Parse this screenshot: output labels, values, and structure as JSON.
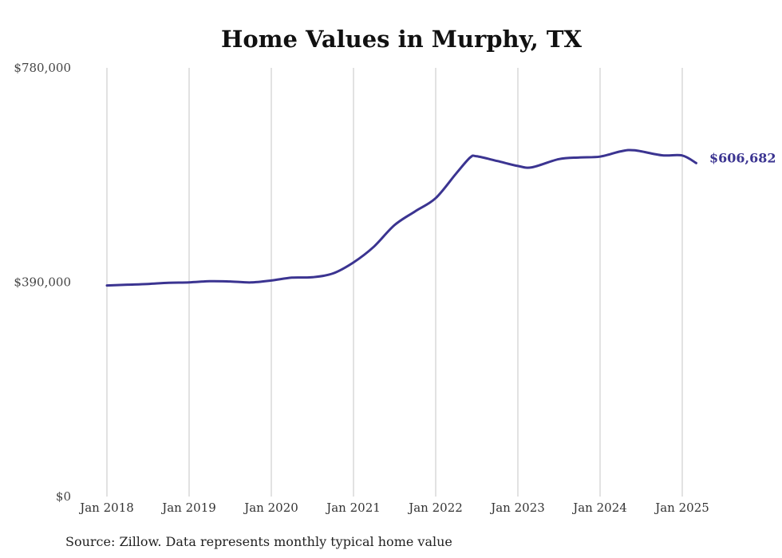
{
  "chart_data": {
    "type": "line",
    "title": "Home Values in Murphy, TX",
    "xlabel": "",
    "ylabel": "",
    "ylim": [
      0,
      780000
    ],
    "y_ticks": [
      {
        "value": 0,
        "label": "$0"
      },
      {
        "value": 390000,
        "label": "$390,000"
      },
      {
        "value": 780000,
        "label": "$780,000"
      }
    ],
    "x_ticks": [
      {
        "value": 2018,
        "label": "Jan 2018"
      },
      {
        "value": 2019,
        "label": "Jan 2019"
      },
      {
        "value": 2020,
        "label": "Jan 2020"
      },
      {
        "value": 2021,
        "label": "Jan 2021"
      },
      {
        "value": 2022,
        "label": "Jan 2022"
      },
      {
        "value": 2023,
        "label": "Jan 2023"
      },
      {
        "value": 2024,
        "label": "Jan 2024"
      },
      {
        "value": 2025,
        "label": "Jan 2025"
      }
    ],
    "xlim": [
      2018,
      2025.17
    ],
    "grid": {
      "vertical": true,
      "horizontal": false
    },
    "series": [
      {
        "color": "#3b3491",
        "end_label": "$606,682",
        "points": [
          [
            2018.0,
            384000
          ],
          [
            2018.25,
            385500
          ],
          [
            2018.5,
            386800
          ],
          [
            2018.75,
            389000
          ],
          [
            2019.0,
            389700
          ],
          [
            2019.25,
            391700
          ],
          [
            2019.5,
            391300
          ],
          [
            2019.75,
            389500
          ],
          [
            2020.0,
            393000
          ],
          [
            2020.25,
            398300
          ],
          [
            2020.5,
            399000
          ],
          [
            2020.75,
            406000
          ],
          [
            2021.0,
            426000
          ],
          [
            2021.25,
            455000
          ],
          [
            2021.5,
            494000
          ],
          [
            2021.75,
            519000
          ],
          [
            2022.0,
            543000
          ],
          [
            2022.25,
            588000
          ],
          [
            2022.42,
            617000
          ],
          [
            2022.5,
            619000
          ],
          [
            2022.75,
            610500
          ],
          [
            2023.0,
            601500
          ],
          [
            2023.17,
            599000
          ],
          [
            2023.5,
            614000
          ],
          [
            2023.75,
            617000
          ],
          [
            2024.0,
            618500
          ],
          [
            2024.25,
            628000
          ],
          [
            2024.42,
            630000
          ],
          [
            2024.75,
            621000
          ],
          [
            2025.0,
            620500
          ],
          [
            2025.17,
            606682
          ]
        ]
      }
    ],
    "source": "Source: Zillow. Data represents monthly typical home value"
  }
}
